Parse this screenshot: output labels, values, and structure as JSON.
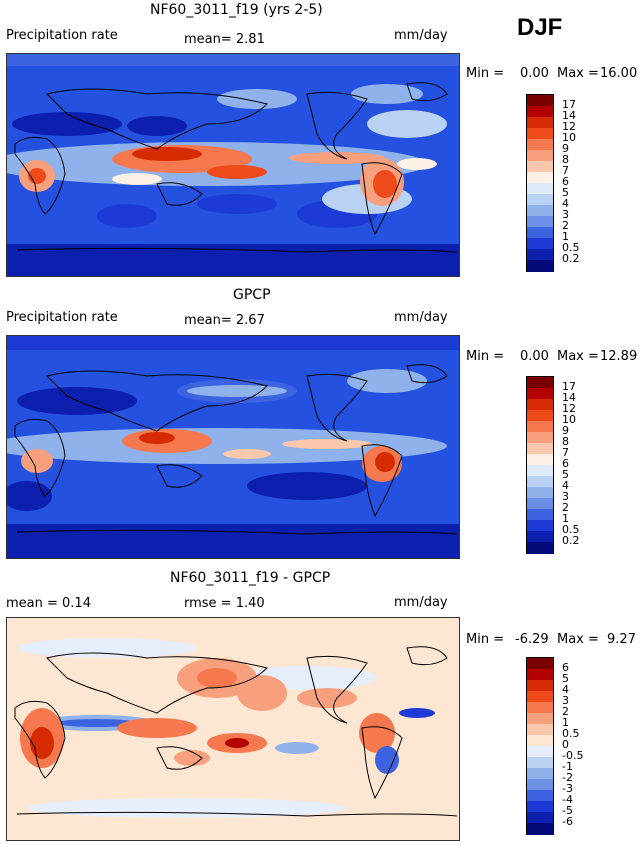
{
  "season": "DJF",
  "panels": [
    {
      "title": "NF60_3011_f19 (yrs 2-5)",
      "left_label": "Precipitation rate",
      "stat1": "mean=   2.81",
      "stat2": "",
      "units": "mm/day",
      "min_label": "Min =",
      "min_value": "0.00",
      "max_label": "Max =",
      "max_value": "16.00",
      "colorbar": {
        "labels": [
          "17",
          "14",
          "12",
          "10",
          "9",
          "8",
          "7",
          "6",
          "5",
          "4",
          "3",
          "2",
          "1",
          "0.5",
          "0.2"
        ],
        "colors": [
          "#7a0000",
          "#b30000",
          "#d62a00",
          "#ef4a1a",
          "#f5784e",
          "#f8a07e",
          "#fcc8ad",
          "#fdf0e4",
          "#ddebf8",
          "#b9d2f3",
          "#8fb2ec",
          "#6b90e6",
          "#3d64e0",
          "#1c3bd6",
          "#0c1fae",
          "#050a7a"
        ]
      }
    },
    {
      "title": "GPCP",
      "left_label": "Precipitation rate",
      "stat1": "mean=   2.67",
      "stat2": "",
      "units": "mm/day",
      "min_label": "Min =",
      "min_value": "0.00",
      "max_label": "Max =",
      "max_value": "12.89",
      "colorbar": {
        "labels": [
          "17",
          "14",
          "12",
          "10",
          "9",
          "8",
          "7",
          "6",
          "5",
          "4",
          "3",
          "2",
          "1",
          "0.5",
          "0.2"
        ],
        "colors": [
          "#7a0000",
          "#b30000",
          "#d62a00",
          "#ef4a1a",
          "#f5784e",
          "#f8a07e",
          "#fcc8ad",
          "#fdf0e4",
          "#ddebf8",
          "#b9d2f3",
          "#8fb2ec",
          "#6b90e6",
          "#3d64e0",
          "#1c3bd6",
          "#0c1fae",
          "#050a7a"
        ]
      }
    },
    {
      "title": "NF60_3011_f19 - GPCP",
      "left_label": "mean =   0.14",
      "stat1": "rmse =   1.40",
      "stat2": "",
      "units": "mm/day",
      "min_label": "Min =",
      "min_value": "-6.29",
      "max_label": "Max =",
      "max_value": "9.27",
      "colorbar": {
        "labels": [
          "6",
          "5",
          "4",
          "3",
          "2",
          "1",
          "0.5",
          "0",
          "-0.5",
          "-1",
          "-2",
          "-3",
          "-4",
          "-5",
          "-6"
        ],
        "colors": [
          "#7a0000",
          "#b30000",
          "#d62a00",
          "#ef4a1a",
          "#f5784e",
          "#f8a07e",
          "#fcc8ad",
          "#fde6d2",
          "#e6eefb",
          "#bcd2f2",
          "#8fb2ec",
          "#6b90e6",
          "#3d64e0",
          "#1c3bd6",
          "#0c1fae",
          "#050a7a"
        ]
      }
    }
  ]
}
